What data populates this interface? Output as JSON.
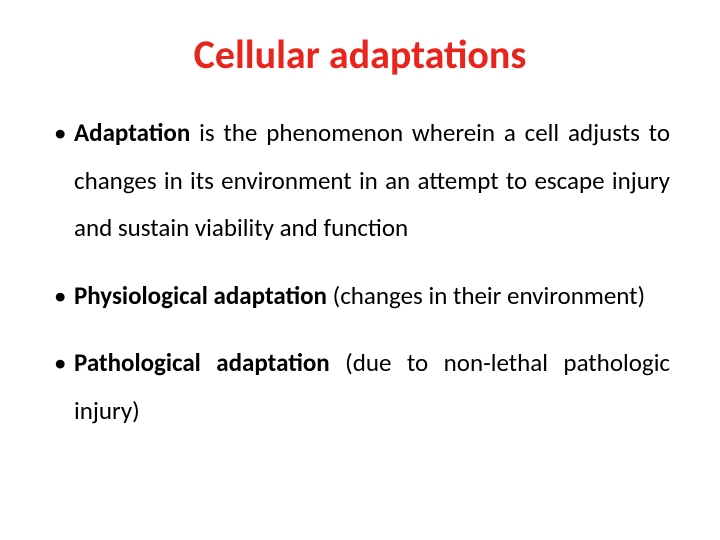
{
  "title": {
    "text": "Cellular adaptations",
    "color": "#e8241c",
    "fontsize": 40
  },
  "body": {
    "color": "#000000",
    "fontsize": 25,
    "line_height": 1.9
  },
  "bullets": [
    {
      "lead_bold": "Adaptation",
      "rest": " is the phenomenon wherein  a cell adjusts to changes in its environment in an attempt to escape injury and sustain viability and function"
    },
    {
      "lead_bold": "Physiological adaptation ",
      "rest": "(changes in their environment)"
    },
    {
      "lead_bold": "Pathological adaptation ",
      "rest": "(due to non-lethal pathologic injury)"
    }
  ]
}
